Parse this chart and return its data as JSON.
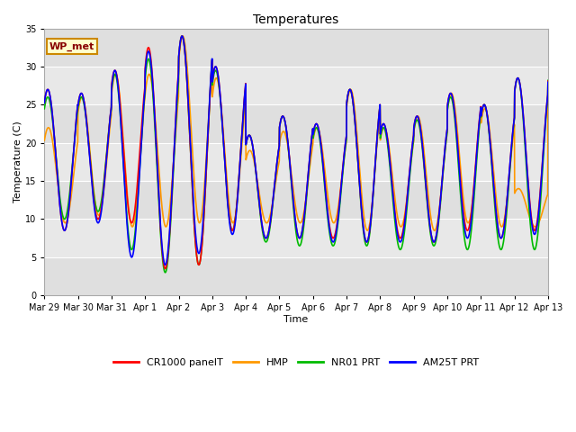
{
  "title": "Temperatures",
  "xlabel": "Time",
  "ylabel": "Temperature (C)",
  "ylim": [
    0,
    35
  ],
  "yticks": [
    0,
    5,
    10,
    15,
    20,
    25,
    30,
    35
  ],
  "fig_bg_color": "#ffffff",
  "plot_bg_color": "#e8e8e8",
  "band_color_light": "#f0f0f0",
  "band_color_dark": "#e0e0e0",
  "grid_color": "#ffffff",
  "annotation_text": "WP_met",
  "annotation_bg": "#ffffcc",
  "annotation_border": "#cc8800",
  "series_colors": {
    "CR1000 panelT": "#ff0000",
    "HMP": "#ff9900",
    "NR01 PRT": "#00bb00",
    "AM25T PRT": "#0000ff"
  },
  "xtick_labels": [
    "Mar 29",
    "Mar 30",
    "Mar 31",
    "Apr 1",
    "Apr 2",
    "Apr 3",
    "Apr 4",
    "Apr 5",
    "Apr 6",
    "Apr 7",
    "Apr 8",
    "Apr 9",
    "Apr 10",
    "Apr 11",
    "Apr 12",
    "Apr 13"
  ],
  "num_days": 15,
  "peaks_cr": [
    27,
    26.5,
    29.5,
    32.5,
    34.0,
    30.0,
    21.0,
    23.5,
    22.5,
    27.0,
    22.5,
    23.5,
    26.5,
    25.0,
    28.5,
    30.0
  ],
  "troughs_cr": [
    8.5,
    10.0,
    9.5,
    3.5,
    4.0,
    8.5,
    7.5,
    7.5,
    7.5,
    7.0,
    7.5,
    7.0,
    8.5,
    7.5,
    8.5,
    10.0
  ],
  "peaks_hmp": [
    22.0,
    26.0,
    29.0,
    29.0,
    34.0,
    28.5,
    19.0,
    21.5,
    22.0,
    27.0,
    22.0,
    23.5,
    26.5,
    24.5,
    14.0,
    30.0
  ],
  "troughs_hmp": [
    9.5,
    10.5,
    9.0,
    9.0,
    9.5,
    9.5,
    9.5,
    9.5,
    9.5,
    8.5,
    9.0,
    8.5,
    9.5,
    9.0,
    9.0,
    9.5
  ],
  "peaks_nr": [
    26.0,
    26.0,
    29.0,
    31.0,
    34.0,
    29.5,
    21.0,
    23.5,
    22.0,
    27.0,
    22.0,
    23.0,
    26.0,
    25.0,
    28.5,
    30.0
  ],
  "troughs_nr": [
    10.0,
    11.0,
    6.0,
    3.0,
    4.0,
    8.5,
    7.0,
    6.5,
    6.5,
    6.5,
    6.0,
    6.5,
    6.0,
    6.0,
    6.0,
    11.0
  ],
  "peaks_am": [
    27.0,
    26.5,
    29.5,
    32.0,
    34.0,
    30.0,
    21.0,
    23.5,
    22.5,
    27.0,
    22.5,
    23.5,
    26.5,
    25.0,
    28.5,
    30.0
  ],
  "troughs_am": [
    8.5,
    9.5,
    5.0,
    4.0,
    5.5,
    8.0,
    7.5,
    7.5,
    7.0,
    7.0,
    7.0,
    7.0,
    7.5,
    7.5,
    8.0,
    8.5
  ]
}
